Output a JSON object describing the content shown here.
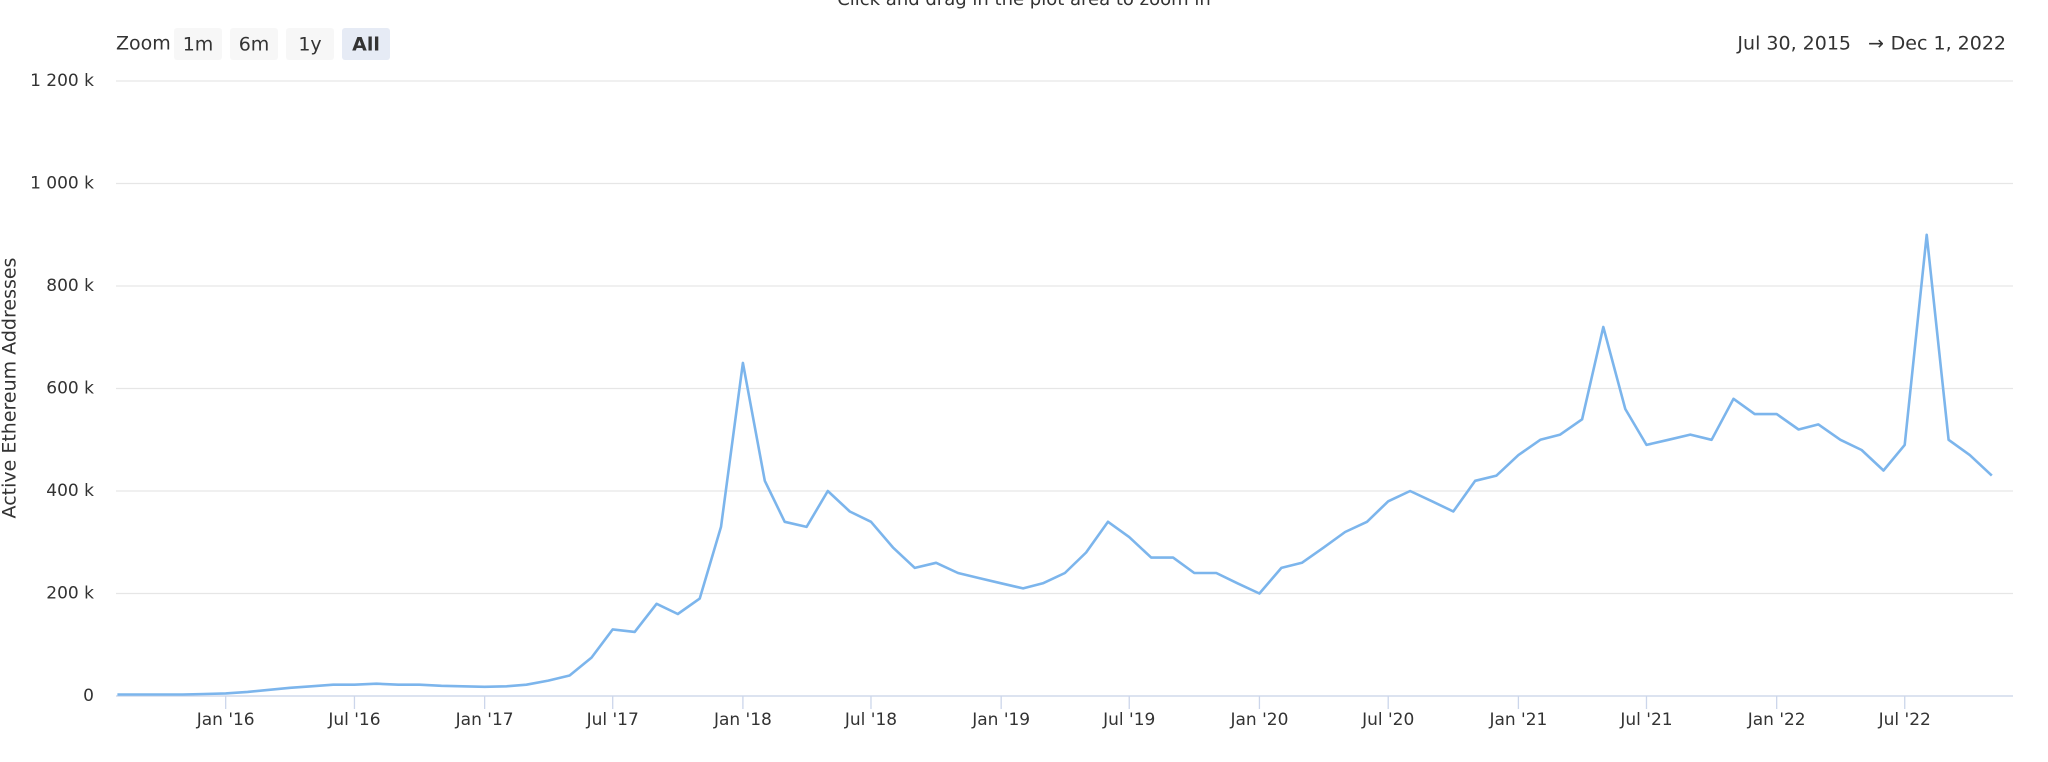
{
  "chart_data": {
    "type": "line",
    "subtitle": "Click and drag in the plot area to zoom in",
    "zoom_label": "Zoom",
    "zoom_buttons": [
      "1m",
      "6m",
      "1y",
      "All"
    ],
    "active_zoom": "All",
    "range_from": "Jul 30, 2015",
    "range_arrow": "→",
    "range_to": "Dec 1, 2022",
    "y_label": "Active Ethereum Addresses",
    "x": [
      "2015-08",
      "2015-09",
      "2015-10",
      "2015-11",
      "2015-12",
      "2016-01",
      "2016-02",
      "2016-03",
      "2016-04",
      "2016-05",
      "2016-06",
      "2016-07",
      "2016-08",
      "2016-09",
      "2016-10",
      "2016-11",
      "2016-12",
      "2017-01",
      "2017-02",
      "2017-03",
      "2017-04",
      "2017-05",
      "2017-06",
      "2017-07",
      "2017-08",
      "2017-09",
      "2017-10",
      "2017-11",
      "2017-12",
      "2018-01",
      "2018-02",
      "2018-03",
      "2018-04",
      "2018-05",
      "2018-06",
      "2018-07",
      "2018-08",
      "2018-09",
      "2018-10",
      "2018-11",
      "2018-12",
      "2019-01",
      "2019-02",
      "2019-03",
      "2019-04",
      "2019-05",
      "2019-06",
      "2019-07",
      "2019-08",
      "2019-09",
      "2019-10",
      "2019-11",
      "2019-12",
      "2020-01",
      "2020-02",
      "2020-03",
      "2020-04",
      "2020-05",
      "2020-06",
      "2020-07",
      "2020-08",
      "2020-09",
      "2020-10",
      "2020-11",
      "2020-12",
      "2021-01",
      "2021-02",
      "2021-03",
      "2021-04",
      "2021-05",
      "2021-06",
      "2021-07",
      "2021-08",
      "2021-09",
      "2021-10",
      "2021-11",
      "2021-12",
      "2022-01",
      "2022-02",
      "2022-03",
      "2022-04",
      "2022-05",
      "2022-06",
      "2022-07",
      "2022-08",
      "2022-09",
      "2022-10",
      "2022-11"
    ],
    "series": [
      {
        "name": "Active Ethereum Addresses",
        "color": "#7cb5ec",
        "values": [
          3000,
          3000,
          3000,
          3000,
          4000,
          5000,
          8000,
          12000,
          16000,
          19000,
          22000,
          22000,
          24000,
          22000,
          22000,
          20000,
          19000,
          18000,
          19000,
          22000,
          30000,
          40000,
          75000,
          130000,
          125000,
          180000,
          160000,
          190000,
          330000,
          650000,
          420000,
          340000,
          330000,
          400000,
          360000,
          340000,
          290000,
          250000,
          260000,
          240000,
          230000,
          220000,
          210000,
          220000,
          240000,
          280000,
          340000,
          310000,
          270000,
          270000,
          240000,
          240000,
          220000,
          200000,
          250000,
          260000,
          290000,
          320000,
          340000,
          380000,
          400000,
          380000,
          360000,
          420000,
          430000,
          470000,
          500000,
          510000,
          540000,
          720000,
          560000,
          490000,
          500000,
          510000,
          500000,
          580000,
          550000,
          550000,
          520000,
          530000,
          500000,
          480000,
          440000,
          490000,
          900000,
          500000,
          470000,
          430000
        ]
      }
    ],
    "xlim": [
      "2015-07-30",
      "2022-12-01"
    ],
    "xticks": [
      {
        "value": "2016-01",
        "label": "Jan '16"
      },
      {
        "value": "2016-07",
        "label": "Jul '16"
      },
      {
        "value": "2017-01",
        "label": "Jan '17"
      },
      {
        "value": "2017-07",
        "label": "Jul '17"
      },
      {
        "value": "2018-01",
        "label": "Jan '18"
      },
      {
        "value": "2018-07",
        "label": "Jul '18"
      },
      {
        "value": "2019-01",
        "label": "Jan '19"
      },
      {
        "value": "2019-07",
        "label": "Jul '19"
      },
      {
        "value": "2020-01",
        "label": "Jan '20"
      },
      {
        "value": "2020-07",
        "label": "Jul '20"
      },
      {
        "value": "2021-01",
        "label": "Jan '21"
      },
      {
        "value": "2021-07",
        "label": "Jul '21"
      },
      {
        "value": "2022-01",
        "label": "Jan '22"
      },
      {
        "value": "2022-07",
        "label": "Jul '22"
      }
    ],
    "ylim": [
      0,
      1200000
    ],
    "yticks": [
      0,
      {
        "value": 200000,
        "label": "200 k"
      },
      {
        "value": 400000,
        "label": "400 k"
      },
      {
        "value": 600000,
        "label": "600 k"
      },
      {
        "value": 800000,
        "label": "800 k"
      },
      {
        "value": 1000000,
        "label": "1 000 k"
      },
      {
        "value": 1200000,
        "label": "1 200 k"
      }
    ],
    "grid": true
  }
}
